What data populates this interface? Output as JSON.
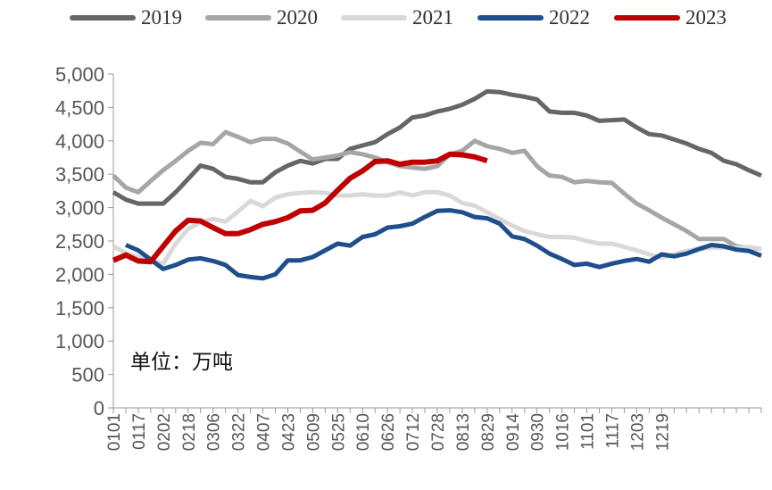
{
  "chart_data": {
    "type": "line",
    "title": "",
    "unit_label": "单位：万吨",
    "xlabel": "",
    "ylabel": "",
    "ylim": [
      0,
      5000
    ],
    "yticks": [
      0,
      500,
      1000,
      1500,
      2000,
      2500,
      3000,
      3500,
      4000,
      4500,
      5000
    ],
    "ytick_labels": [
      "0",
      "500",
      "1,000",
      "1,500",
      "2,000",
      "2,500",
      "3,000",
      "3,500",
      "4,000",
      "4,500",
      "5,000"
    ],
    "x_count": 53,
    "xtick_labels": [
      "0101",
      "0117",
      "0202",
      "0218",
      "0306",
      "0322",
      "0407",
      "0423",
      "0509",
      "0525",
      "0610",
      "0626",
      "0712",
      "0728",
      "0813",
      "0829",
      "0914",
      "0930",
      "1016",
      "1101",
      "1117",
      "1203",
      "1219"
    ],
    "legend_position": "top",
    "series": [
      {
        "name": "2019",
        "color": "#666666",
        "start": 0,
        "values": [
          3230,
          3120,
          3060,
          3060,
          3060,
          3230,
          3430,
          3630,
          3580,
          3460,
          3430,
          3380,
          3380,
          3530,
          3630,
          3700,
          3660,
          3730,
          3730,
          3880,
          3930,
          3980,
          4100,
          4200,
          4350,
          4380,
          4440,
          4480,
          4540,
          4630,
          4740,
          4730,
          4690,
          4660,
          4620,
          4440,
          4420,
          4420,
          4380,
          4300,
          4310,
          4320,
          4200,
          4100,
          4080,
          4020,
          3960,
          3880,
          3820,
          3700,
          3650,
          3560,
          3480
        ]
      },
      {
        "name": "2020",
        "color": "#a6a6a6",
        "start": 0,
        "values": [
          3480,
          3300,
          3230,
          3400,
          3560,
          3700,
          3850,
          3970,
          3950,
          4130,
          4060,
          3980,
          4030,
          4030,
          3960,
          3840,
          3720,
          3750,
          3780,
          3830,
          3800,
          3750,
          3680,
          3620,
          3600,
          3580,
          3620,
          3800,
          3850,
          4000,
          3920,
          3880,
          3820,
          3850,
          3620,
          3480,
          3460,
          3380,
          3400,
          3380,
          3370,
          3210,
          3060,
          2960,
          2850,
          2750,
          2650,
          2530,
          2530,
          2530,
          2420,
          2400,
          2380
        ]
      },
      {
        "name": "2021",
        "color": "#d9d9d9",
        "start": 0,
        "values": [
          2420,
          2320,
          2260,
          2210,
          2160,
          2460,
          2680,
          2780,
          2830,
          2790,
          2940,
          3100,
          3020,
          3150,
          3200,
          3220,
          3230,
          3220,
          3180,
          3180,
          3200,
          3180,
          3180,
          3230,
          3180,
          3230,
          3230,
          3180,
          3070,
          3030,
          2930,
          2830,
          2730,
          2650,
          2600,
          2560,
          2560,
          2550,
          2500,
          2460,
          2460,
          2410,
          2360,
          2300,
          2250,
          2300,
          2350,
          2380,
          2400,
          2400,
          2400,
          2410,
          2380
        ]
      },
      {
        "name": "2022",
        "color": "#1f4e8c",
        "start": 1,
        "values": [
          2440,
          2360,
          2220,
          2080,
          2140,
          2220,
          2240,
          2200,
          2140,
          1990,
          1960,
          1940,
          2000,
          2210,
          2210,
          2260,
          2360,
          2460,
          2430,
          2560,
          2600,
          2700,
          2720,
          2760,
          2860,
          2950,
          2960,
          2930,
          2860,
          2840,
          2760,
          2570,
          2530,
          2430,
          2310,
          2230,
          2140,
          2160,
          2110,
          2160,
          2200,
          2230,
          2190,
          2300,
          2270,
          2310,
          2380,
          2440,
          2420,
          2370,
          2350,
          2280
        ]
      },
      {
        "name": "2023",
        "color": "#c00000",
        "start": 0,
        "values": [
          2210,
          2290,
          2200,
          2190,
          2420,
          2650,
          2810,
          2800,
          2700,
          2610,
          2610,
          2670,
          2750,
          2790,
          2850,
          2950,
          2960,
          3070,
          3260,
          3440,
          3550,
          3690,
          3700,
          3650,
          3680,
          3680,
          3700,
          3800,
          3790,
          3760,
          3700
        ]
      }
    ]
  }
}
